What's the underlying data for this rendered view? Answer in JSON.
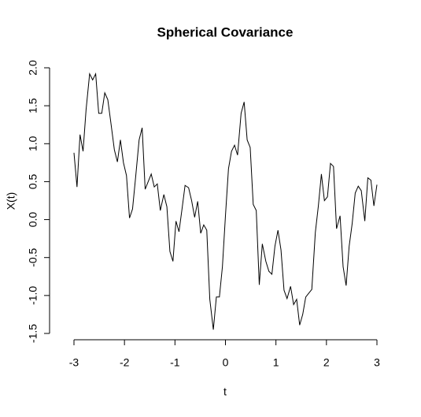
{
  "chart_data": {
    "type": "line",
    "title": "Spherical Covariance",
    "xlabel": "t",
    "ylabel": "X(t)",
    "x": [
      -3.0,
      -2.94,
      -2.88,
      -2.82,
      -2.76,
      -2.69,
      -2.63,
      -2.57,
      -2.51,
      -2.45,
      -2.39,
      -2.33,
      -2.27,
      -2.2,
      -2.14,
      -2.08,
      -2.02,
      -1.96,
      -1.9,
      -1.84,
      -1.78,
      -1.71,
      -1.65,
      -1.59,
      -1.53,
      -1.47,
      -1.41,
      -1.35,
      -1.29,
      -1.22,
      -1.16,
      -1.1,
      -1.04,
      -0.98,
      -0.92,
      -0.86,
      -0.8,
      -0.73,
      -0.67,
      -0.61,
      -0.55,
      -0.49,
      -0.43,
      -0.37,
      -0.31,
      -0.24,
      -0.18,
      -0.12,
      -0.06,
      0.0,
      0.06,
      0.12,
      0.18,
      0.24,
      0.31,
      0.37,
      0.43,
      0.49,
      0.55,
      0.61,
      0.67,
      0.73,
      0.8,
      0.86,
      0.92,
      0.98,
      1.04,
      1.1,
      1.16,
      1.22,
      1.29,
      1.35,
      1.41,
      1.47,
      1.53,
      1.59,
      1.65,
      1.71,
      1.78,
      1.84,
      1.9,
      1.96,
      2.02,
      2.08,
      2.14,
      2.2,
      2.27,
      2.33,
      2.39,
      2.45,
      2.51,
      2.57,
      2.63,
      2.69,
      2.76,
      2.82,
      2.88,
      2.94,
      3.0
    ],
    "values": [
      0.88,
      0.43,
      1.12,
      0.9,
      1.45,
      1.92,
      1.84,
      1.92,
      1.4,
      1.4,
      1.67,
      1.58,
      1.28,
      0.92,
      0.76,
      1.05,
      0.75,
      0.58,
      0.02,
      0.14,
      0.55,
      1.05,
      1.21,
      0.4,
      0.5,
      0.6,
      0.43,
      0.47,
      0.12,
      0.33,
      0.17,
      -0.42,
      -0.55,
      -0.02,
      -0.16,
      0.14,
      0.45,
      0.42,
      0.25,
      0.03,
      0.24,
      -0.18,
      -0.07,
      -0.14,
      -1.05,
      -1.45,
      -1.02,
      -1.02,
      -0.62,
      0.05,
      0.67,
      0.9,
      0.98,
      0.85,
      1.4,
      1.55,
      1.05,
      0.95,
      0.2,
      0.12,
      -0.86,
      -0.32,
      -0.55,
      -0.68,
      -0.72,
      -0.35,
      -0.14,
      -0.4,
      -0.93,
      -1.04,
      -0.88,
      -1.12,
      -1.05,
      -1.39,
      -1.25,
      -1.02,
      -0.97,
      -0.92,
      -0.17,
      0.18,
      0.6,
      0.25,
      0.3,
      0.74,
      0.7,
      -0.12,
      0.05,
      -0.62,
      -0.87,
      -0.35,
      -0.05,
      0.35,
      0.44,
      0.38,
      -0.02,
      0.55,
      0.52,
      0.18,
      0.46
    ],
    "color": "#000000",
    "xlim": [
      -3,
      3
    ],
    "xticks": [
      -3,
      -2,
      -1,
      0,
      1,
      2,
      3
    ],
    "ylim": [
      -1.5,
      2
    ],
    "yticks": [
      {
        "value": -1.5,
        "label": "-1.5"
      },
      {
        "value": -1,
        "label": "-1.0"
      },
      {
        "value": -0.5,
        "label": "-0.5"
      },
      {
        "value": 0,
        "label": "0.0"
      },
      {
        "value": 0.5,
        "label": "0.5"
      },
      {
        "value": 1,
        "label": "1.0"
      },
      {
        "value": 1.5,
        "label": "1.5"
      },
      {
        "value": 2,
        "label": "2.0"
      }
    ]
  }
}
